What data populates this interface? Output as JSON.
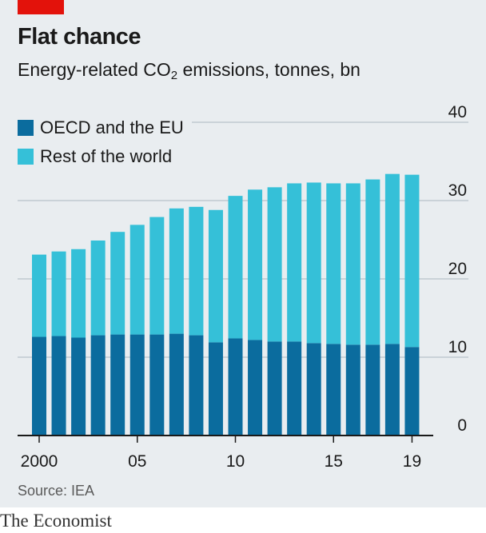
{
  "chart_data": {
    "type": "bar",
    "stacked": true,
    "title": "Flat chance",
    "subtitle_main": "Energy-related CO",
    "subtitle_sub": "2",
    "subtitle_tail": " emissions, tonnes, bn",
    "years": [
      2000,
      2001,
      2002,
      2003,
      2004,
      2005,
      2006,
      2007,
      2008,
      2009,
      2010,
      2011,
      2012,
      2013,
      2014,
      2015,
      2016,
      2017,
      2018,
      2019
    ],
    "x_tick_labels": [
      {
        "year": 2000,
        "label": "2000"
      },
      {
        "year": 2005,
        "label": "05"
      },
      {
        "year": 2010,
        "label": "10"
      },
      {
        "year": 2015,
        "label": "15"
      },
      {
        "year": 2019,
        "label": "19"
      }
    ],
    "y_ticks": [
      0,
      10,
      20,
      30,
      40
    ],
    "ylim": [
      0,
      40
    ],
    "legend_position": "top-left",
    "series": [
      {
        "name": "OECD and the EU",
        "color": "#0b6c9e",
        "values": [
          12.6,
          12.7,
          12.5,
          12.8,
          12.9,
          12.9,
          12.9,
          13.0,
          12.8,
          11.9,
          12.4,
          12.2,
          12.0,
          12.0,
          11.8,
          11.7,
          11.6,
          11.6,
          11.7,
          11.3
        ]
      },
      {
        "name": "Rest of the world",
        "color": "#35c0d8",
        "values": [
          10.5,
          10.8,
          11.3,
          12.1,
          13.1,
          14.0,
          15.0,
          16.0,
          16.4,
          16.9,
          18.2,
          19.2,
          19.7,
          20.2,
          20.5,
          20.5,
          20.6,
          21.1,
          21.7,
          22.0
        ]
      }
    ]
  },
  "source": "Source: IEA",
  "brand": "The Economist",
  "colors": {
    "accent": "#e3120b",
    "background": "#e9edf0"
  }
}
